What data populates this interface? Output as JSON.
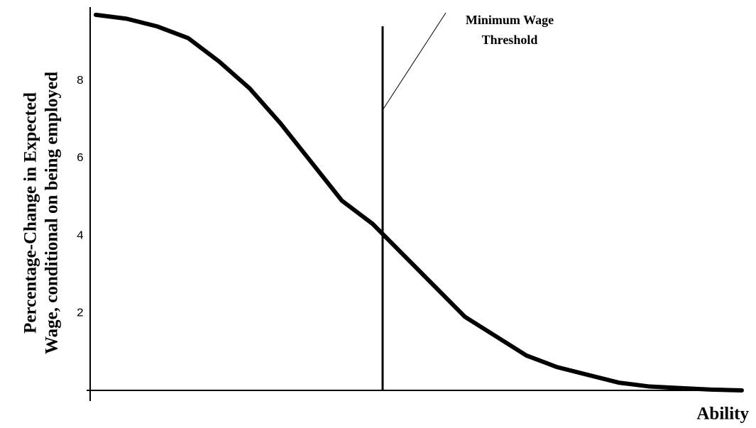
{
  "chart_data": {
    "type": "line",
    "ylabel": [
      "Percentage-Change in Expected",
      "Wage, conditional on being employed"
    ],
    "xlabel": "Ability",
    "annotation": [
      "Minimum Wage",
      "Threshold"
    ],
    "categories": [
      null,
      null,
      null,
      null,
      null,
      null,
      null,
      null,
      null,
      null,
      null,
      null,
      null,
      null,
      null,
      null,
      null,
      null,
      null,
      null,
      null,
      null
    ],
    "series": [
      {
        "name": null,
        "color": "#000000",
        "values": [
          9.7,
          9.6,
          9.4,
          9.1,
          8.5,
          7.8,
          6.9,
          5.9,
          4.9,
          4.3,
          3.5,
          2.7,
          1.9,
          1.4,
          0.9,
          0.6,
          0.4,
          0.2,
          0.1,
          0.06,
          0.02,
          0.0
        ]
      }
    ],
    "ylim": [
      0,
      9.9
    ],
    "yticks": [
      2,
      4,
      6,
      8
    ],
    "grid": false
  }
}
